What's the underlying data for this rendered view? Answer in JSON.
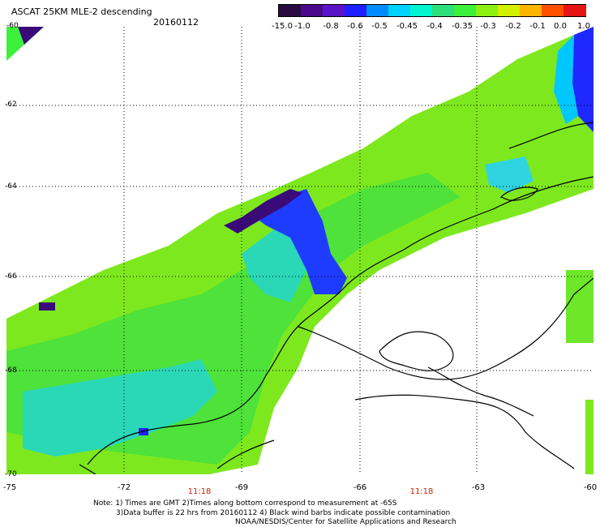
{
  "header": {
    "title": "ASCAT 25KM MLE-2 descending",
    "date": "20160112"
  },
  "colorbar": {
    "labels": [
      "-15.0",
      "-1.0",
      "-0.8",
      "-0.6",
      "-0.5",
      "-0.45",
      "-0.4",
      "-0.35",
      "-0.3",
      "-0.2",
      "-0.1",
      "0.0",
      "1.0"
    ],
    "colors": [
      "#2a0a40",
      "#4a0a8a",
      "#5a14c8",
      "#1e1eff",
      "#008cff",
      "#00d2ff",
      "#00f5d0",
      "#2de07a",
      "#3cf03c",
      "#8cf014",
      "#d2f000",
      "#ffb400",
      "#ff5000",
      "#e61414"
    ]
  },
  "map": {
    "y_axis": [
      "-60",
      "-62",
      "-64",
      "-66",
      "-68",
      "-70"
    ],
    "x_axis": [
      "-75",
      "-72",
      "-69",
      "-66",
      "-63",
      "-60"
    ],
    "times": [
      "11:18",
      "11:18"
    ]
  },
  "footer": {
    "note1": "Note: 1) Times are GMT 2)Times along bottom correspond to measurement at -65S",
    "note2": "3)Data buffer is 22 hrs from 20160112 4) Black wind barbs indicate possible contamination",
    "note3": "NOAA/NESDIS/Center for Satellite Applications and Research"
  }
}
